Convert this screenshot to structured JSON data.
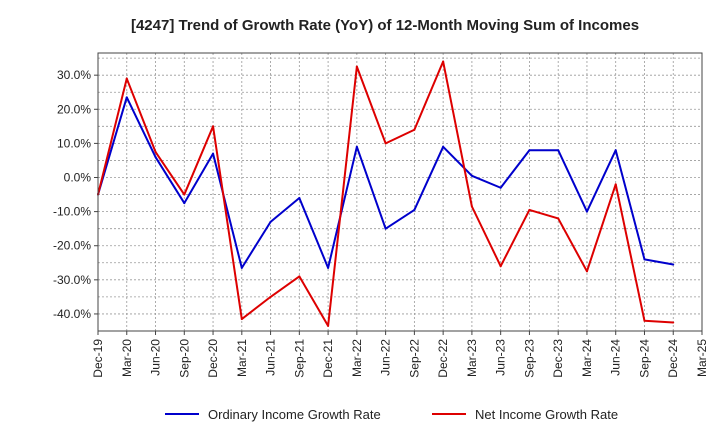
{
  "chart_data": {
    "type": "line",
    "title": "[4247]  Trend of Growth Rate (YoY) of 12-Month Moving Sum of Incomes",
    "xlabel": "",
    "ylabel": "",
    "x_tick_labels": [
      "Dec-19",
      "Mar-20",
      "Jun-20",
      "Sep-20",
      "Dec-20",
      "Mar-21",
      "Jun-21",
      "Sep-21",
      "Dec-21",
      "Mar-22",
      "Jun-22",
      "Sep-22",
      "Dec-22",
      "Mar-23",
      "Jun-23",
      "Sep-23",
      "Dec-23",
      "Mar-24",
      "Jun-24",
      "Sep-24",
      "Dec-24",
      "Mar-25"
    ],
    "y_ticks": [
      30,
      20,
      10,
      0,
      -10,
      -20,
      -30,
      -40
    ],
    "y_tick_labels": [
      "30.0%",
      "20.0%",
      "10.0%",
      "0.0%",
      "-10.0%",
      "-20.0%",
      "-30.0%",
      "-40.0%"
    ],
    "ylim": [
      -45,
      36.5
    ],
    "grid": true,
    "legend_position": "bottom",
    "series": [
      {
        "name": "Ordinary Income Growth Rate",
        "color": "#0000cc",
        "values": [
          -5,
          23.5,
          6,
          -7.5,
          7,
          -26.5,
          -13,
          -6,
          -26.5,
          9,
          -15,
          -9.5,
          9,
          0.5,
          -3,
          8,
          8,
          -10,
          8,
          -24,
          -25.5,
          null
        ]
      },
      {
        "name": "Net Income Growth Rate",
        "color": "#dd0000",
        "values": [
          -5,
          29,
          7.5,
          -5,
          15,
          -41.5,
          -35,
          -29,
          -43.5,
          32.5,
          10,
          14,
          34,
          -8.5,
          -26,
          -9.5,
          -12,
          -27.5,
          -2,
          -42,
          -42.5,
          null
        ]
      }
    ]
  }
}
